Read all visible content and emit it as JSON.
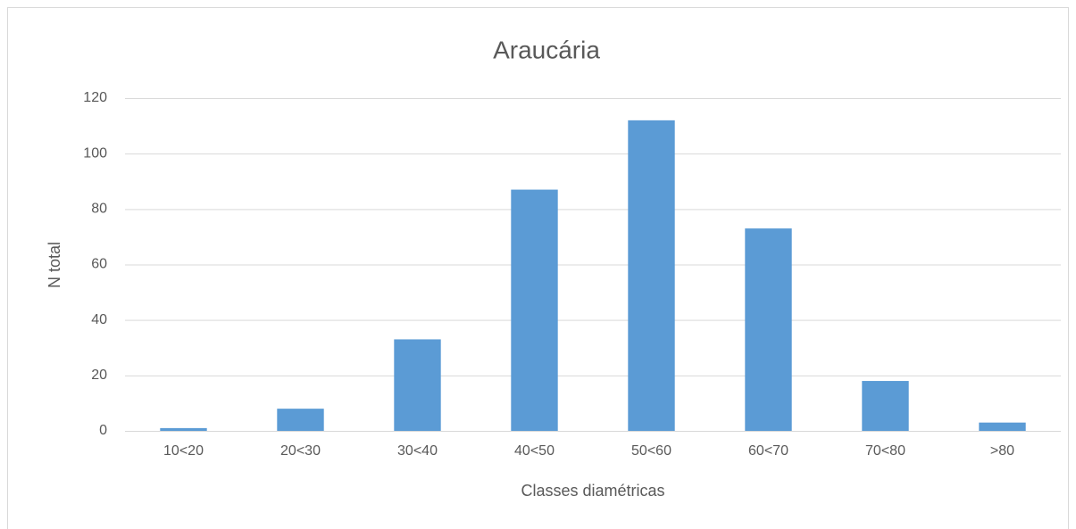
{
  "chart_data": {
    "type": "bar",
    "title": "Araucária",
    "x_label": "Classes diamétricas",
    "y_label": "N total",
    "categories": [
      "10<20",
      "20<30",
      "30<40",
      "40<50",
      "50<60",
      "60<70",
      "70<80",
      ">80"
    ],
    "values": [
      1,
      8,
      33,
      87,
      112,
      73,
      18,
      3
    ],
    "color": "#5b9bd5",
    "ylim": [
      0,
      120
    ],
    "yticks": [
      0,
      20,
      40,
      60,
      80,
      100,
      120
    ],
    "grid": true
  }
}
